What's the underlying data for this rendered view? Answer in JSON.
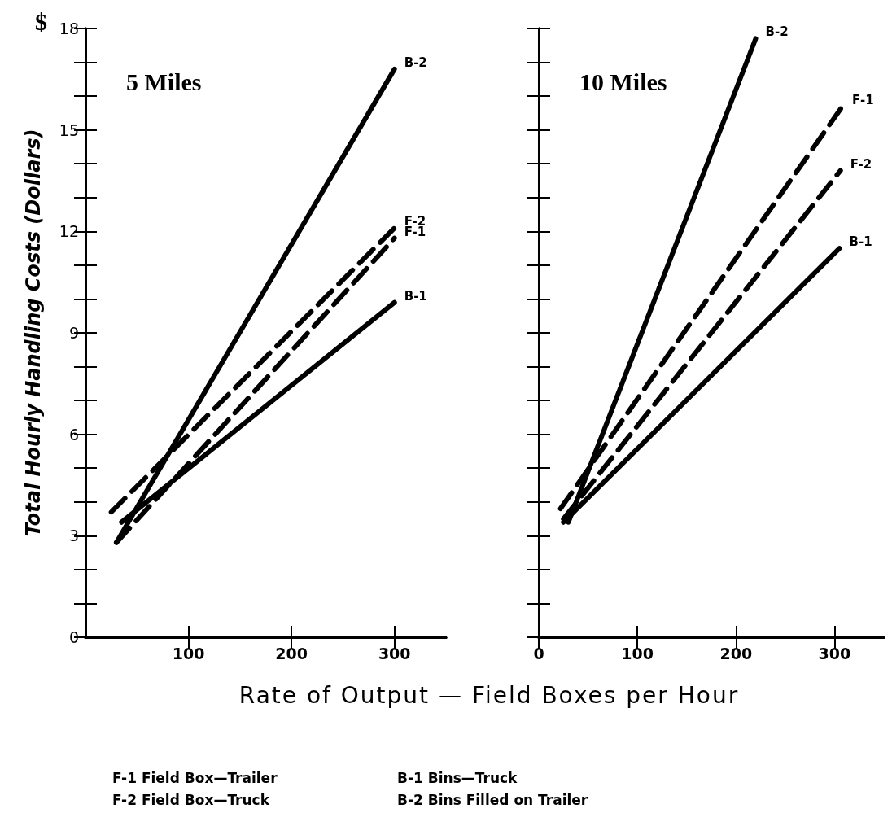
{
  "chart_data": [
    {
      "type": "line",
      "title": "5 Miles",
      "ylabel": "Total Hourly Handling Costs (Dollars)",
      "xlabel": "Rate of Output — Field Boxes per Hour",
      "xlim": [
        0,
        350
      ],
      "xticks": [
        100,
        200,
        300
      ],
      "ylim": [
        0,
        18
      ],
      "yticks": [
        0,
        {
          "value": 1,
          "label": null
        },
        {
          "value": 2,
          "label": null
        },
        3,
        {
          "value": 4,
          "label": null
        },
        {
          "value": 5,
          "label": null
        },
        6,
        {
          "value": 7,
          "label": null
        },
        {
          "value": 8,
          "label": null
        },
        9,
        {
          "value": 10,
          "label": null
        },
        {
          "value": 11,
          "label": null
        },
        12,
        {
          "value": 13,
          "label": null
        },
        {
          "value": 14,
          "label": null
        },
        15,
        {
          "value": 16,
          "label": null
        },
        {
          "value": 17,
          "label": null
        },
        18
      ],
      "grid": false,
      "legend": false,
      "marker": "none",
      "series": [
        {
          "name": "B-2",
          "color": "#000000",
          "line_style": "solid",
          "x": [
            30,
            300
          ],
          "values": [
            2.8,
            16.8
          ]
        },
        {
          "name": "F-2",
          "color": "#000000",
          "line_style": "dashed",
          "x": [
            25,
            300
          ],
          "values": [
            3.7,
            12.1
          ]
        },
        {
          "name": "F-1",
          "color": "#000000",
          "line_style": "dashed",
          "x": [
            30,
            300
          ],
          "values": [
            2.8,
            11.8
          ]
        },
        {
          "name": "B-1",
          "color": "#000000",
          "line_style": "solid",
          "x": [
            35,
            300
          ],
          "values": [
            3.4,
            9.9
          ]
        }
      ],
      "annotations": [
        "$",
        "F-1 Field Box—Trailer",
        "F-2 Field Box—Truck",
        "B-1 Bins—Truck",
        "B-2 Bins Filled on Trailer"
      ]
    },
    {
      "type": "line",
      "title": "10 Miles",
      "xlim": [
        0,
        350
      ],
      "xticks": [
        0,
        100,
        200,
        300
      ],
      "ylim": [
        0,
        18
      ],
      "yticks": [
        0,
        {
          "value": 1,
          "label": null
        },
        {
          "value": 2,
          "label": null
        },
        3,
        {
          "value": 4,
          "label": null
        },
        {
          "value": 5,
          "label": null
        },
        6,
        {
          "value": 7,
          "label": null
        },
        {
          "value": 8,
          "label": null
        },
        9,
        {
          "value": 10,
          "label": null
        },
        {
          "value": 11,
          "label": null
        },
        12,
        {
          "value": 13,
          "label": null
        },
        {
          "value": 14,
          "label": null
        },
        15,
        {
          "value": 16,
          "label": null
        },
        {
          "value": 17,
          "label": null
        },
        18
      ],
      "tick_labels": "x",
      "grid": false,
      "legend": false,
      "marker": "none",
      "series": [
        {
          "name": "B-2",
          "color": "#000000",
          "line_style": "solid",
          "x": [
            30,
            220
          ],
          "values": [
            3.4,
            17.7
          ]
        },
        {
          "name": "F-1",
          "color": "#000000",
          "line_style": "dashed",
          "x": [
            22,
            308
          ],
          "values": [
            3.8,
            15.7
          ]
        },
        {
          "name": "F-2",
          "color": "#000000",
          "line_style": "dashed",
          "x": [
            25,
            306
          ],
          "values": [
            3.5,
            13.8
          ]
        },
        {
          "name": "B-1",
          "color": "#000000",
          "line_style": "solid",
          "x": [
            25,
            305
          ],
          "values": [
            3.4,
            11.5
          ]
        }
      ]
    }
  ]
}
